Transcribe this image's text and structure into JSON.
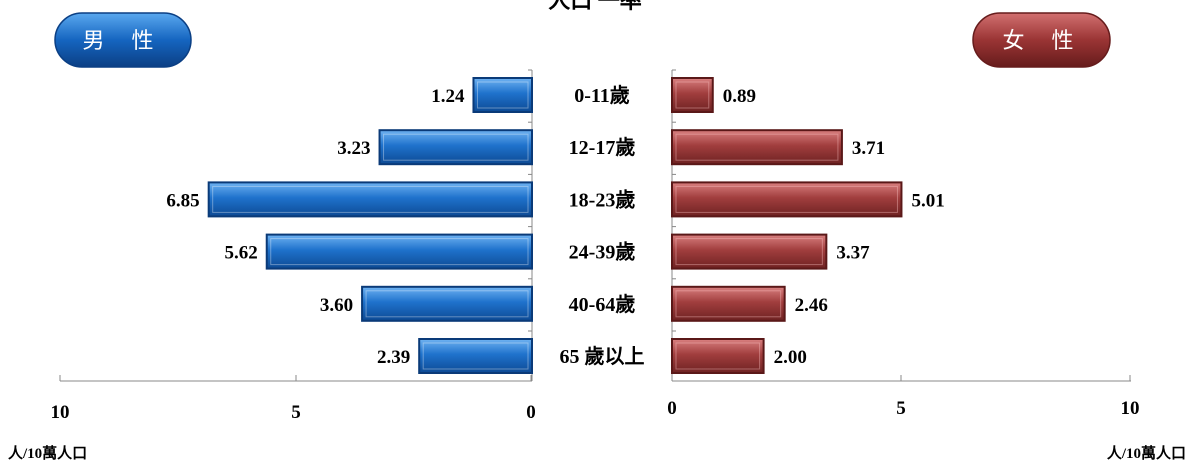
{
  "chart_data": {
    "type": "bar",
    "title_fragment": "人口  一率",
    "categories": [
      "0-11歲",
      "12-17歲",
      "18-23歲",
      "24-39歲",
      "40-64歲",
      "65 歲以上"
    ],
    "series": [
      {
        "name": "男 性",
        "values": [
          1.24,
          3.23,
          6.85,
          5.62,
          3.6,
          2.39
        ],
        "labels": [
          "1.24",
          "3.23",
          "6.85",
          "5.62",
          "3.60",
          "2.39"
        ]
      },
      {
        "name": "女 性",
        "values": [
          0.89,
          3.71,
          5.01,
          3.37,
          2.46,
          2.0
        ],
        "labels": [
          "0.89",
          "3.71",
          "5.01",
          "3.37",
          "2.46",
          "2.00"
        ]
      }
    ],
    "left_axis": {
      "ticks": [
        "10",
        "5",
        "0"
      ],
      "range": [
        0,
        10
      ],
      "unit": "人/10萬人口"
    },
    "right_axis": {
      "ticks": [
        "0",
        "5",
        "10"
      ],
      "range": [
        0,
        10
      ],
      "unit": "人/10萬人口"
    }
  },
  "colors": {
    "male": "#1f6fc8",
    "female": "#9c3a3a"
  }
}
